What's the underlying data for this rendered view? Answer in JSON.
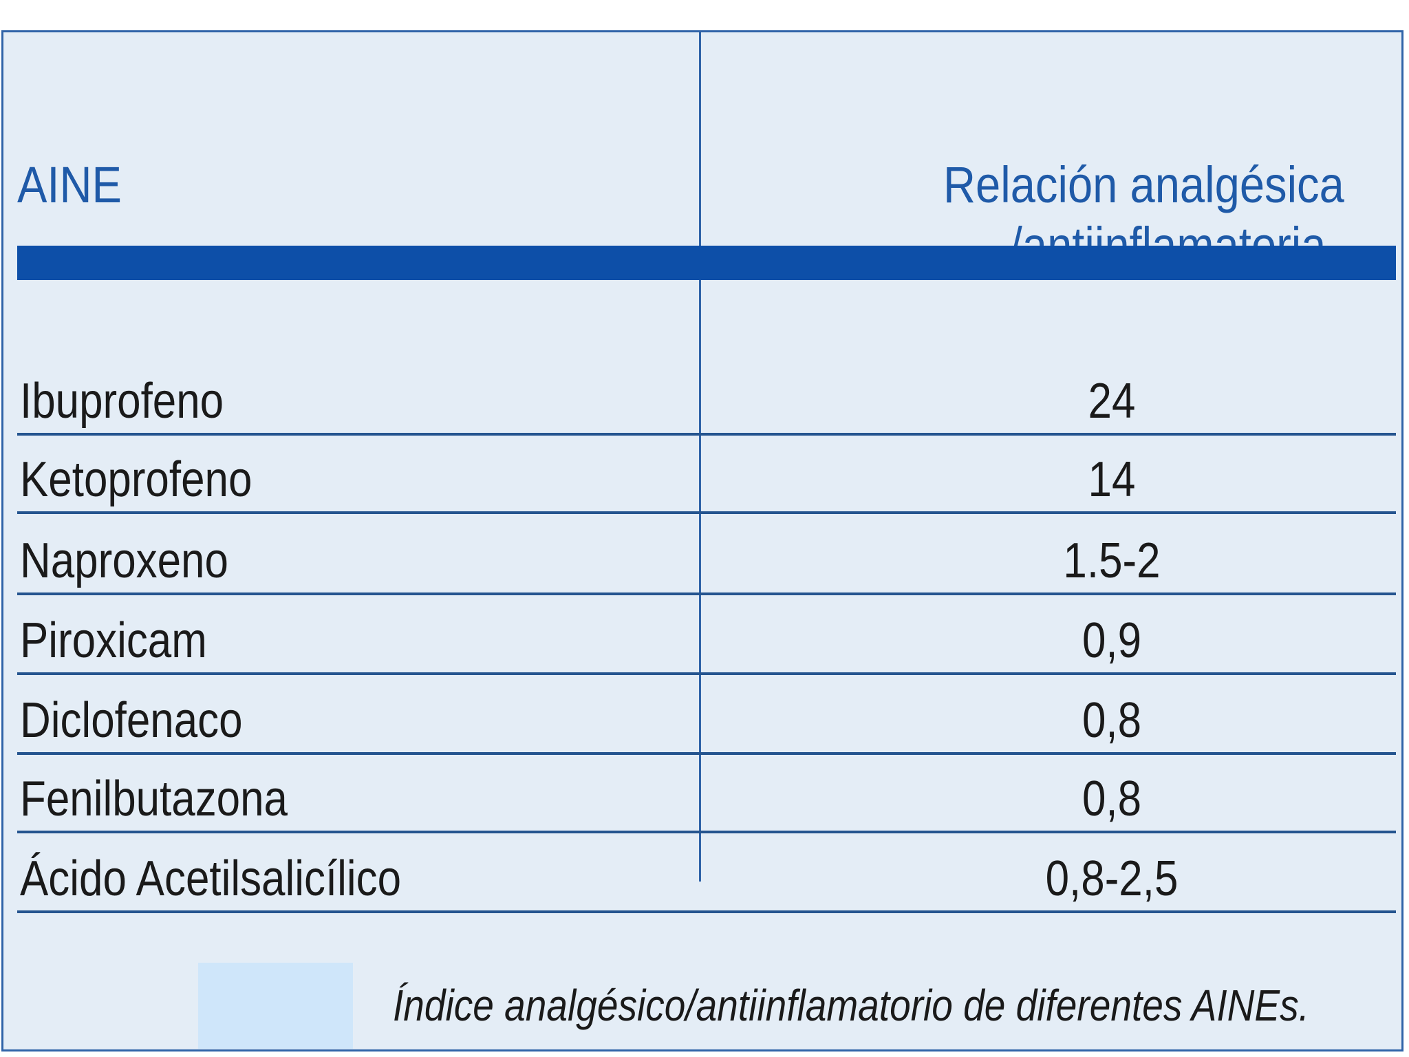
{
  "table": {
    "header": {
      "col1": "AINE",
      "col2_line1": "Relación analgésica",
      "col2_line2": "/antiinflamatoria"
    },
    "rows": [
      {
        "name": "Ibuprofeno",
        "value": "24"
      },
      {
        "name": "Ketoprofeno",
        "value": "14"
      },
      {
        "name": "Naproxeno",
        "value": "1.5-2"
      },
      {
        "name": "Piroxicam",
        "value": "0,9"
      },
      {
        "name": "Diclofenaco",
        "value": "0,8"
      },
      {
        "name": "Fenilbutazona",
        "value": "0,8"
      },
      {
        "name": "Ácido Acetilsalicílico",
        "value": "0,8-2,5"
      }
    ]
  },
  "caption": "Índice analgésico/antiinflamatorio de diferentes AINEs.",
  "colors": {
    "panel_background": "#e4edf6",
    "header_text": "#1f5aa8",
    "header_bar": "#0d4fa8",
    "legend_swatch": "#cfe6fa"
  }
}
